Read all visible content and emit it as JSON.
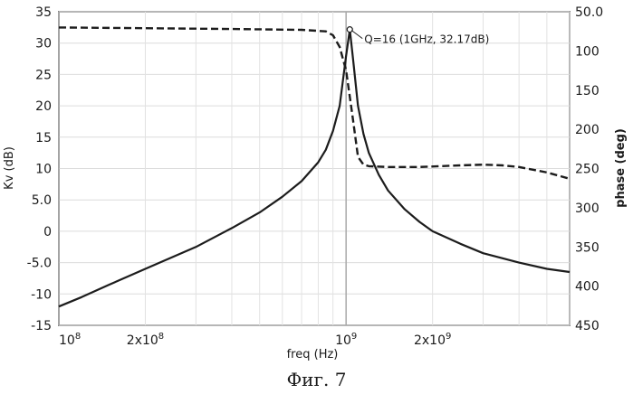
{
  "caption": "Фиг. 7",
  "chart_data": {
    "type": "line",
    "xlabel": "freq (Hz)",
    "x_scale": "log",
    "xlim": [
      100000000,
      6000000000
    ],
    "x_ticks": [
      {
        "value": 100000000,
        "mant": "",
        "base": "10",
        "exp": "8"
      },
      {
        "value": 200000000,
        "mant": "2x",
        "base": "10",
        "exp": "8"
      },
      {
        "value": 1000000000,
        "mant": "",
        "base": "10",
        "exp": "9"
      },
      {
        "value": 2000000000,
        "mant": "2x",
        "base": "10",
        "exp": "9"
      }
    ],
    "y_left": {
      "label": "Kv (dB)",
      "lim": [
        -15,
        35
      ],
      "ticks": [
        "35",
        "30",
        "25",
        "20",
        "15",
        "10",
        "5.0",
        "0",
        "-5.0",
        "-10",
        "-15"
      ],
      "tick_values": [
        35,
        30,
        25,
        20,
        15,
        10,
        5,
        0,
        -5,
        -10,
        -15
      ]
    },
    "y_right": {
      "label": "phase (deg)",
      "lim": [
        50,
        450
      ],
      "inverted": true,
      "ticks": [
        "50.0",
        "100",
        "150",
        "200",
        "250",
        "300",
        "350",
        "400",
        "450"
      ],
      "tick_values": [
        50,
        100,
        150,
        200,
        250,
        300,
        350,
        400,
        450
      ]
    },
    "grid": true,
    "series": [
      {
        "axis": "left",
        "style": "solid",
        "x": [
          100000000,
          120000000,
          150000000,
          200000000,
          300000000,
          400000000,
          500000000,
          600000000,
          700000000,
          800000000,
          850000000,
          900000000,
          950000000,
          1000000000,
          1030000000,
          1060000000,
          1100000000,
          1150000000,
          1200000000,
          1300000000,
          1400000000,
          1600000000,
          1800000000,
          2000000000,
          2500000000,
          3000000000,
          4000000000,
          5000000000,
          6000000000
        ],
        "y": [
          -12,
          -10.5,
          -8.5,
          -6,
          -2.5,
          0.5,
          3,
          5.5,
          8,
          11,
          13,
          16,
          20,
          28,
          32.17,
          27,
          20,
          15.5,
          12.5,
          9,
          6.5,
          3.5,
          1.5,
          0,
          -2,
          -3.5,
          -5,
          -6,
          -6.5
        ]
      },
      {
        "axis": "right",
        "style": "dashed",
        "x": [
          100000000,
          200000000,
          400000000,
          700000000,
          850000000,
          900000000,
          950000000,
          1000000000,
          1050000000,
          1100000000,
          1150000000,
          1200000000,
          1400000000,
          1800000000,
          2500000000,
          3000000000,
          3500000000,
          4000000000,
          5000000000,
          6000000000
        ],
        "y": [
          70,
          71,
          72,
          73,
          75,
          80,
          95,
          125,
          180,
          235,
          245,
          247,
          248,
          248,
          246,
          245,
          246,
          248,
          255,
          263
        ]
      }
    ],
    "annotations": [
      {
        "text": "Q=16 (1GHz, 32.17dB)",
        "x": 1030000000,
        "y": 32.17
      }
    ]
  }
}
